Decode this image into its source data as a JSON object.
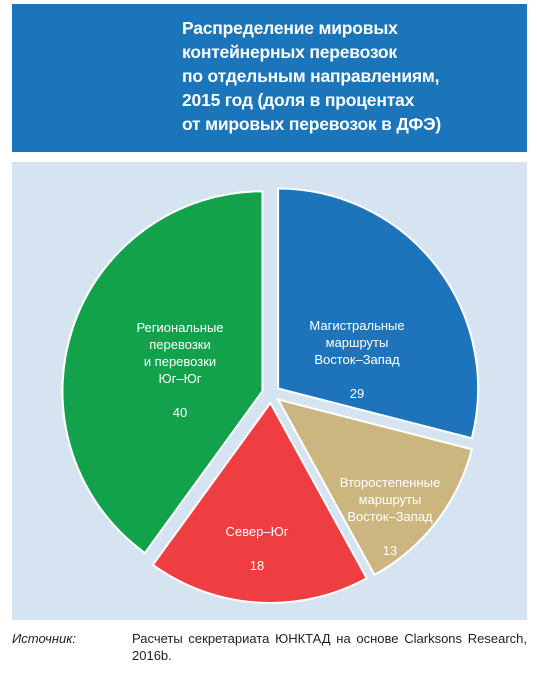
{
  "header": {
    "title": "Распределение мировых\nконтейнерных перевозок\nпо отдельным  направлениям,\n2015 год  (доля в процентах\nот мировых  перевозок  в ДФЭ)"
  },
  "chart_data": {
    "type": "pie",
    "title": "Распределение мировых контейнерных перевозок по отдельным  направлениям, 2015 год  (доля в процентах от мировых  перевозок  в ДФЭ)",
    "slices": [
      {
        "label": "Магистральные\nмаршруты\nВосток–Запад",
        "value": 29,
        "value_text": "29",
        "color": "#1e74bb"
      },
      {
        "label": "Второстепенные\nмаршруты\nВосток–Запад",
        "value": 13,
        "value_text": "13",
        "color": "#cbb67f"
      },
      {
        "label": "Север–Юг",
        "value": 18,
        "value_text": "18",
        "color": "#ef3e42"
      },
      {
        "label": "Региональные\nперевозки\nи перевозки\nЮг–Юг",
        "value": 40,
        "value_text": "40",
        "color": "#12a24b"
      }
    ]
  },
  "footer": {
    "source_label": "Источник:",
    "source_text": "Расчеты секретариата ЮНКТАД на основе Clarksons Research, 2016b."
  }
}
